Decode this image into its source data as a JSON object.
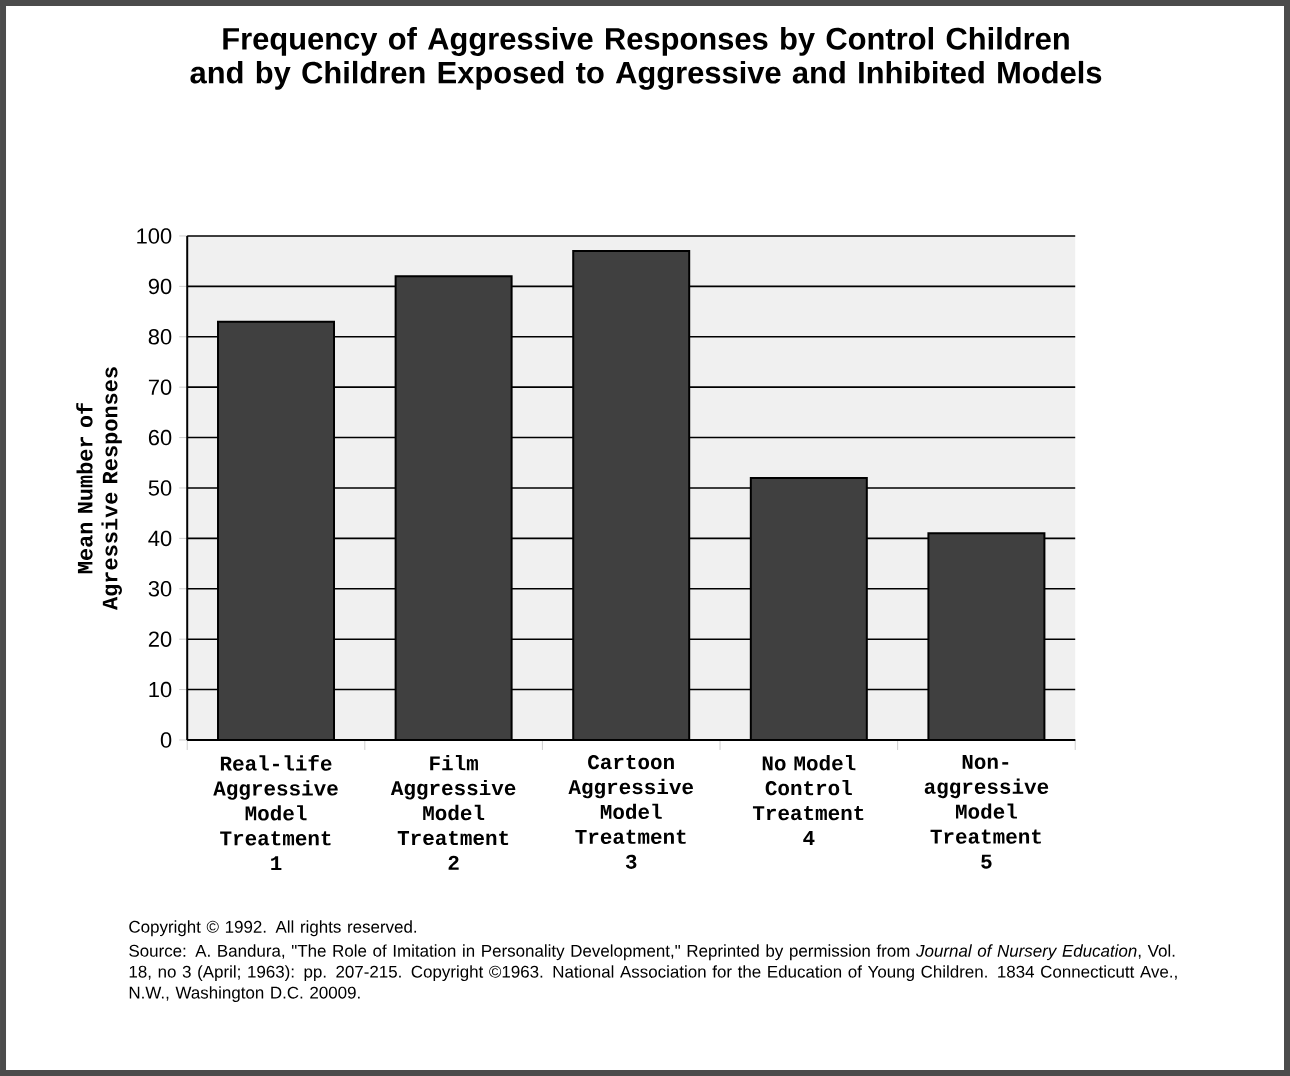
{
  "chart_data": {
    "type": "bar",
    "title": "Frequency of Aggressive Responses by Control Children and by Children Exposed to Aggressive and Inhibited Models",
    "ylabel": "Mean Number of Agressive Responses",
    "categories": [
      "Real-life Aggressive Model Treatment 1",
      "Film Aggressive Model Treatment 2",
      "Cartoon Aggressive Model Treatment 3",
      "No Model Control Treatment 4",
      "Non-aggressive Model Treatment 5"
    ],
    "values": [
      83,
      92,
      97,
      52,
      41
    ],
    "color": "#404040",
    "ylim": [
      0,
      100
    ],
    "yticks": [
      0,
      10,
      20,
      30,
      40,
      50,
      60,
      70,
      80,
      90,
      100
    ],
    "grid": "y",
    "annotations": [
      "Copyright © 1992. All rights reserved.",
      "Source: A. Bandura, \"The Role of Imitation in Personality Development,\" Reprinted by permission from *Journal of Nursery Education*, Vol. 18, no 3 (April; 1963): pp. 207-215. Copyright ©1963. National Association for the Education of Young Children. 1834 Connecticutt Ave., N.W., Washington D.C. 20009."
    ]
  }
}
